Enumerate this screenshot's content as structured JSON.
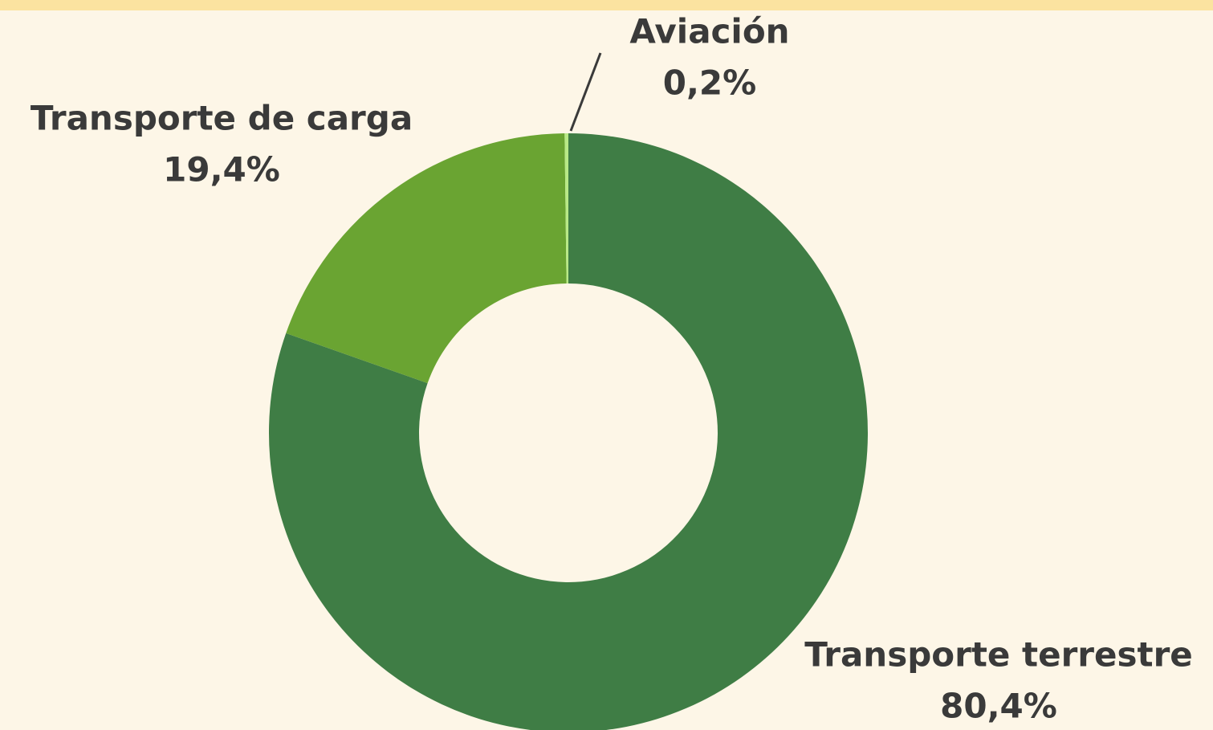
{
  "chart_data": {
    "type": "donut",
    "categories": [
      "Transporte terrestre",
      "Transporte de carga",
      "Aviación"
    ],
    "values": [
      80.4,
      19.4,
      0.2
    ],
    "value_labels": [
      "80,4%",
      "19,4%",
      "0,2%"
    ],
    "colors": [
      "#3f7d45",
      "#6aa432",
      "#b8e986"
    ]
  }
}
